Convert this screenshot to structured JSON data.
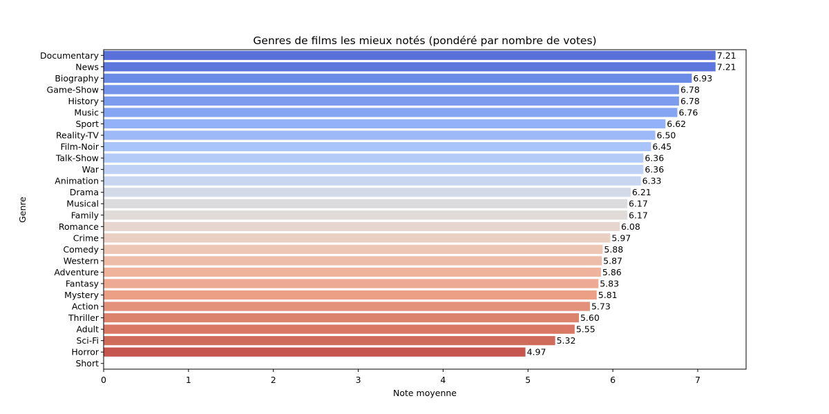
{
  "chart_data": {
    "type": "bar",
    "orientation": "horizontal",
    "title": "Genres de films les mieux notés (pondéré par nombre de votes)",
    "xlabel": "Note moyenne",
    "ylabel": "Genre",
    "xlim": [
      0,
      7.57
    ],
    "xticks": [
      "0",
      "1",
      "2",
      "3",
      "4",
      "5",
      "6",
      "7"
    ],
    "grid": false,
    "legend": "none",
    "categories": [
      "Documentary",
      "News",
      "Biography",
      "Game-Show",
      "History",
      "Music",
      "Sport",
      "Reality-TV",
      "Film-Noir",
      "Talk-Show",
      "War",
      "Animation",
      "Drama",
      "Musical",
      "Family",
      "Romance",
      "Crime",
      "Comedy",
      "Western",
      "Adventure",
      "Fantasy",
      "Mystery",
      "Action",
      "Thriller",
      "Adult",
      "Sci-Fi",
      "Horror",
      "Short"
    ],
    "values": [
      7.21,
      7.21,
      6.93,
      6.78,
      6.78,
      6.76,
      6.62,
      6.5,
      6.45,
      6.36,
      6.36,
      6.33,
      6.21,
      6.17,
      6.17,
      6.08,
      5.97,
      5.88,
      5.87,
      5.86,
      5.83,
      5.81,
      5.73,
      5.6,
      5.55,
      5.32,
      4.97,
      null
    ],
    "value_labels": [
      "7.21",
      "7.21",
      "6.93",
      "6.78",
      "6.78",
      "6.76",
      "6.62",
      "6.50",
      "6.45",
      "6.36",
      "6.36",
      "6.33",
      "6.21",
      "6.17",
      "6.17",
      "6.08",
      "5.97",
      "5.88",
      "5.87",
      "5.86",
      "5.83",
      "5.81",
      "5.73",
      "5.60",
      "5.55",
      "5.32",
      "4.97",
      ""
    ],
    "colors": [
      "#5a71d9",
      "#5d76dc",
      "#6a8be6",
      "#7495ea",
      "#7c9cee",
      "#85a5f2",
      "#92b1f6",
      "#9db9f8",
      "#a9c4f9",
      "#b4cbf8",
      "#bfd2f6",
      "#c9d6f1",
      "#d3dbe9",
      "#dbdbde",
      "#e0dbd8",
      "#e6d6cd",
      "#ebcfc2",
      "#edc6b6",
      "#eebda9",
      "#efb39c",
      "#eda991",
      "#eb9f85",
      "#e3917a",
      "#dc836e",
      "#d87865",
      "#cf6b5b",
      "#c65550",
      "#c04545"
    ]
  }
}
